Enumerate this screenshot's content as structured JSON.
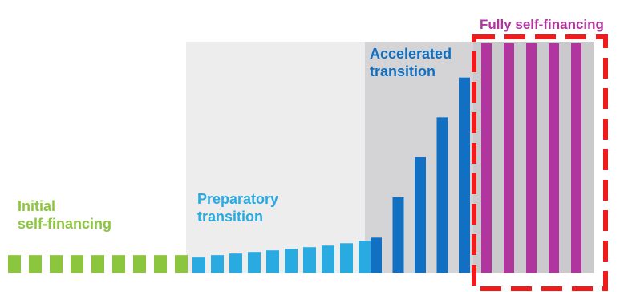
{
  "chart_data": {
    "type": "bar",
    "ylim": [
      0,
      290
    ],
    "series": [
      {
        "name": "Initial\nself-financing",
        "color": "#8cc63f",
        "values": [
          22,
          22,
          22,
          22,
          22,
          22,
          22,
          22,
          22,
          null,
          null,
          null,
          null,
          null,
          null,
          null,
          null,
          null,
          null,
          null,
          null,
          null,
          null,
          null,
          null,
          null,
          null,
          null,
          null
        ]
      },
      {
        "name": "Preparatory\ntransition",
        "color": "#29abe2",
        "values": [
          null,
          null,
          null,
          null,
          null,
          null,
          null,
          null,
          null,
          20,
          22,
          24,
          26,
          28,
          30,
          32,
          34,
          37,
          40,
          null,
          null,
          null,
          null,
          null,
          null,
          null,
          null,
          null,
          null
        ]
      },
      {
        "name": "Accelerated\ntransition",
        "color": "#1170c2",
        "values": [
          null,
          null,
          null,
          null,
          null,
          null,
          null,
          null,
          null,
          null,
          null,
          null,
          null,
          null,
          null,
          null,
          null,
          null,
          null,
          44,
          95,
          145,
          195,
          245,
          null,
          null,
          null,
          null,
          null
        ]
      },
      {
        "name": "Fully self-financing",
        "color": "#b0359e",
        "values": [
          null,
          null,
          null,
          null,
          null,
          null,
          null,
          null,
          null,
          null,
          null,
          null,
          null,
          null,
          null,
          null,
          null,
          null,
          null,
          null,
          null,
          null,
          null,
          null,
          288,
          288,
          288,
          288,
          288
        ]
      }
    ]
  }
}
